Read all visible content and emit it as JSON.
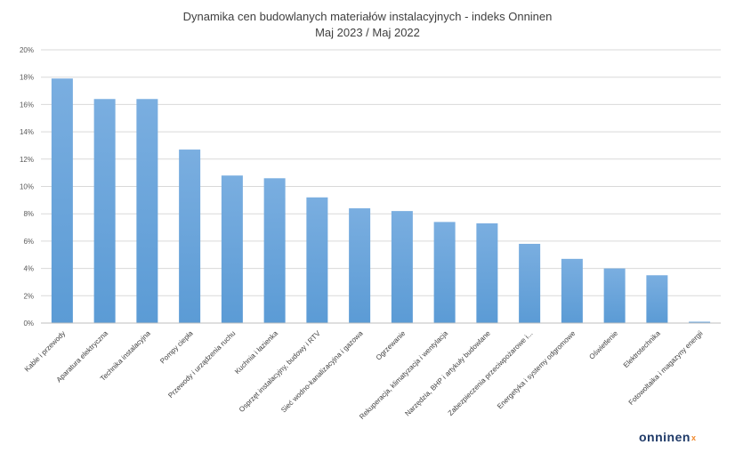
{
  "chart_data": {
    "type": "bar",
    "title": "Dynamika cen budowlanych materiałów instalacyjnych - indeks Onninen",
    "subtitle": "Maj 2023 / Maj 2022",
    "xlabel": "",
    "ylabel": "",
    "ylim": [
      0,
      20
    ],
    "yticks": [
      "0%",
      "2%",
      "4%",
      "6%",
      "8%",
      "10%",
      "12%",
      "14%",
      "16%",
      "18%",
      "20%"
    ],
    "grid": true,
    "legend": "none",
    "bar_color": "#5b9bd5",
    "categories": [
      "Kable i przewody",
      "Aparatura elektryczna",
      "Technika instalacyjna",
      "Pompy ciepła",
      "Przewody i urządzenia ruchu",
      "Kuchnia i łazienka",
      "Osprzęt instalacyjny, budowy i RTV",
      "Sieć wodno-kanalizacyjna i gazowa",
      "Ogrzewanie",
      "Rekuperacja, klimatyzacja i wentylacja",
      "Narzędzia, BHP i artykuły budowlane",
      "Zabezpieczenia przeciwpożarowe i...",
      "Energetyka i systemy odgromowe",
      "Oświetlenie",
      "Elektrotechnika",
      "Fotowoltaika i magazyny energii"
    ],
    "values": [
      17.9,
      16.4,
      16.4,
      12.7,
      10.8,
      10.6,
      9.2,
      8.4,
      8.2,
      7.4,
      7.3,
      5.8,
      4.7,
      4.0,
      3.5,
      0.1
    ]
  },
  "logo": {
    "text": "onninen",
    "mark": "x"
  }
}
